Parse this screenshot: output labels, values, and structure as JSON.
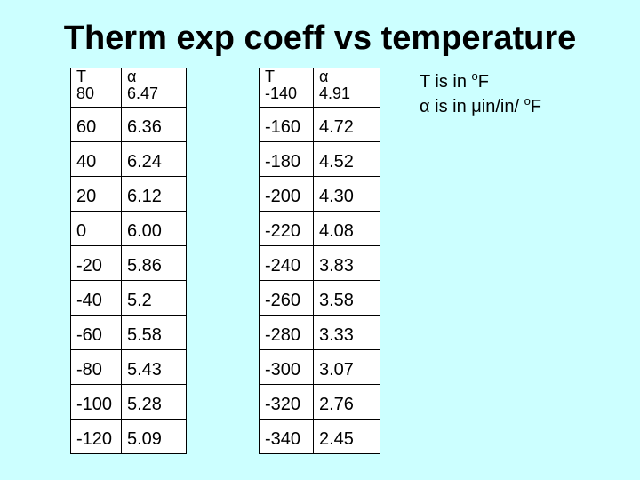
{
  "title": "Therm exp coeff vs temperature",
  "left_table": {
    "headers": [
      "T",
      "α"
    ],
    "rows": [
      [
        "80",
        "6.47"
      ],
      [
        "60",
        "6.36"
      ],
      [
        "40",
        "6.24"
      ],
      [
        "20",
        "6.12"
      ],
      [
        "0",
        "6.00"
      ],
      [
        "-20",
        "5.86"
      ],
      [
        "-40",
        "5.2"
      ],
      [
        "-60",
        "5.58"
      ],
      [
        "-80",
        "5.43"
      ],
      [
        "-100",
        "5.28"
      ],
      [
        "-120",
        "5.09"
      ]
    ]
  },
  "right_table": {
    "headers": [
      "T",
      "α"
    ],
    "rows": [
      [
        "-140",
        "4.91"
      ],
      [
        "-160",
        "4.72"
      ],
      [
        "-180",
        "4.52"
      ],
      [
        "-200",
        "4.30"
      ],
      [
        "-220",
        "4.08"
      ],
      [
        "-240",
        "3.83"
      ],
      [
        "-260",
        "3.58"
      ],
      [
        "-280",
        "3.33"
      ],
      [
        "-300",
        "3.07"
      ],
      [
        "-320",
        "2.76"
      ],
      [
        "-340",
        "2.45"
      ]
    ]
  },
  "notes": {
    "line1_prefix": "T is in ",
    "line1_sup": "o",
    "line1_unit": "F",
    "line2_prefix": "α is in μin/in/ ",
    "line2_sup": "o",
    "line2_unit": "F"
  }
}
